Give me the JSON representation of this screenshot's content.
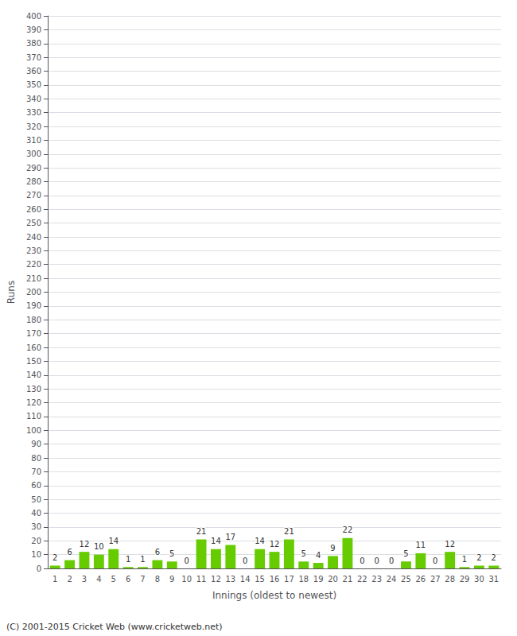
{
  "chart_data": {
    "type": "bar",
    "categories": [
      "1",
      "2",
      "3",
      "4",
      "5",
      "6",
      "7",
      "8",
      "9",
      "10",
      "11",
      "12",
      "13",
      "14",
      "15",
      "16",
      "17",
      "18",
      "19",
      "20",
      "21",
      "22",
      "23",
      "24",
      "25",
      "26",
      "27",
      "28",
      "29",
      "30",
      "31"
    ],
    "values": [
      2,
      6,
      12,
      10,
      14,
      1,
      1,
      6,
      5,
      0,
      21,
      14,
      17,
      0,
      14,
      12,
      21,
      5,
      4,
      9,
      22,
      0,
      0,
      0,
      5,
      11,
      0,
      12,
      1,
      2,
      2
    ],
    "color": "#66cc00",
    "xlabel": "Innings (oldest to newest)",
    "ylabel": "Runs",
    "ylim": [
      0,
      400
    ],
    "yticks": [
      0,
      10,
      20,
      30,
      40,
      50,
      60,
      70,
      80,
      90,
      100,
      110,
      120,
      130,
      140,
      150,
      160,
      170,
      180,
      190,
      200,
      210,
      220,
      230,
      240,
      250,
      260,
      270,
      280,
      290,
      300,
      310,
      320,
      330,
      340,
      350,
      360,
      370,
      380,
      390,
      400
    ],
    "grid": true,
    "data_labels": true,
    "annotations": [
      "(C) 2001-2015 Cricket Web (www.cricketweb.net)"
    ]
  }
}
